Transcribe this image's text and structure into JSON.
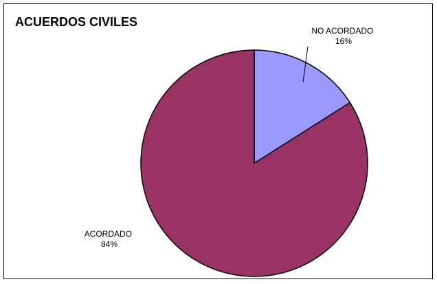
{
  "chart_data": {
    "type": "pie",
    "title": "ACUERDOS CIVILES",
    "slices": [
      {
        "label": "NO ACORDADO",
        "value": 16,
        "value_label": "16%",
        "color": "#9999ff"
      },
      {
        "label": "ACORDADO",
        "value": 84,
        "value_label": "84%",
        "color": "#993366"
      }
    ],
    "start": "top",
    "direction": "clockwise",
    "legend": "none"
  }
}
